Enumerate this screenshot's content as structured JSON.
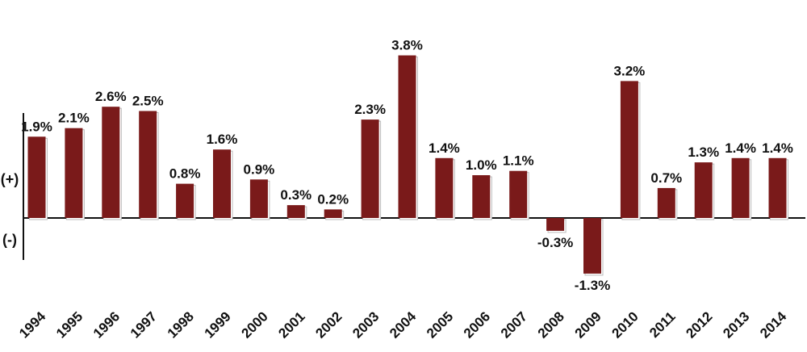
{
  "chart_data": {
    "type": "bar",
    "title": "",
    "xlabel": "",
    "ylabel": "",
    "categories": [
      "1994",
      "1995",
      "1996",
      "1997",
      "1998",
      "1999",
      "2000",
      "2001",
      "2002",
      "2003",
      "2004",
      "2005",
      "2006",
      "2007",
      "2008",
      "2009",
      "2010",
      "2011",
      "2012",
      "2013",
      "2014"
    ],
    "values": [
      1.9,
      2.1,
      2.6,
      2.5,
      0.8,
      1.6,
      0.9,
      0.3,
      0.2,
      2.3,
      3.8,
      1.4,
      1.0,
      1.1,
      -0.3,
      -1.3,
      3.2,
      0.7,
      1.3,
      1.4,
      1.4
    ],
    "value_labels": [
      "1.9%",
      "2.1%",
      "2.6%",
      "2.5%",
      "0.8%",
      "1.6%",
      "0.9%",
      "0.3%",
      "0.2%",
      "2.3%",
      "3.8%",
      "1.4%",
      "1.0%",
      "1.1%",
      "-0.3%",
      "-1.3%",
      "3.2%",
      "0.7%",
      "1.3%",
      "1.4%",
      "1.4%"
    ],
    "axis_signs": {
      "positive": "(+)",
      "negative": "(-)"
    },
    "ylim": [
      -1.3,
      3.8
    ],
    "grid": false,
    "legend": "none",
    "colors": {
      "bar": "#7a1a1a",
      "bar_shadow": "#ffffff",
      "axis": "#111111"
    }
  }
}
